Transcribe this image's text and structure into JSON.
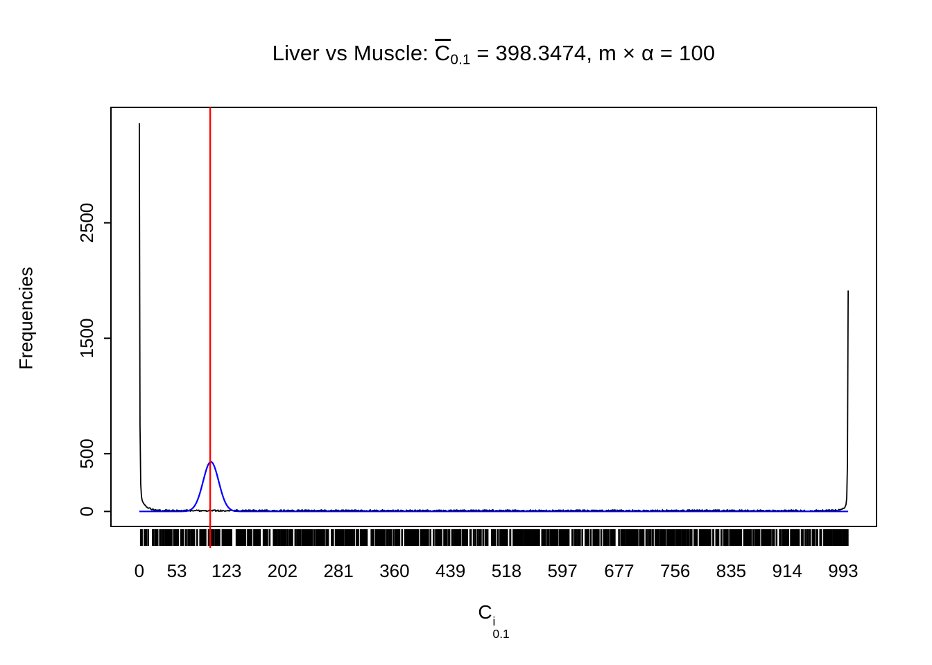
{
  "page": {
    "background": "#ffffff"
  },
  "title": {
    "prefix": "Liver vs Muscle: ",
    "c": "C",
    "c_sub": "0.1",
    "equals": " = ",
    "value": "398.3474",
    "separator": ", ",
    "m_expr": "m × α",
    "equals2": " = ",
    "m_value": "100"
  },
  "axis_labels": {
    "ylabel": "Frequencies",
    "xlabel_base": "C",
    "xlabel_sup": "i",
    "xlabel_sub": "0.1"
  },
  "chart_data": {
    "type": "line",
    "title": "Liver vs Muscle: C̄(0.1) = 398.3474, m × α = 100",
    "xlabel": "C(0.1)^i",
    "ylabel": "Frequencies",
    "x_ticks": [
      0,
      53,
      123,
      202,
      281,
      360,
      439,
      518,
      597,
      677,
      756,
      835,
      914,
      993
    ],
    "y_ticks": [
      0,
      500,
      1500,
      2500
    ],
    "xlim": [
      -40,
      1040
    ],
    "ylim": [
      -130,
      3500
    ],
    "grid": false,
    "legend": null,
    "series": [
      {
        "name": "frequencies-histogram-line",
        "type": "line",
        "color": "#000000",
        "x_range": [
          0,
          1000
        ],
        "left_spike": {
          "x": 0,
          "peak": 3350,
          "tail_height": 150,
          "tail_decay": 7
        },
        "right_spike": {
          "x": 1000,
          "peak": 1900,
          "tail_height": 80,
          "tail_decay": 5
        },
        "baseline_noise_max": 14
      },
      {
        "name": "normal-density-curve",
        "type": "line",
        "color": "#0000ff",
        "x_range": [
          0,
          1000
        ],
        "mean": 101,
        "sd": 11,
        "peak": 430
      },
      {
        "name": "reference-vline",
        "type": "vline",
        "color": "#ff0000",
        "x": 100
      }
    ],
    "rug": {
      "present": true,
      "color": "#000000",
      "x_range": [
        0,
        1000
      ],
      "n_ticks": 820
    }
  }
}
